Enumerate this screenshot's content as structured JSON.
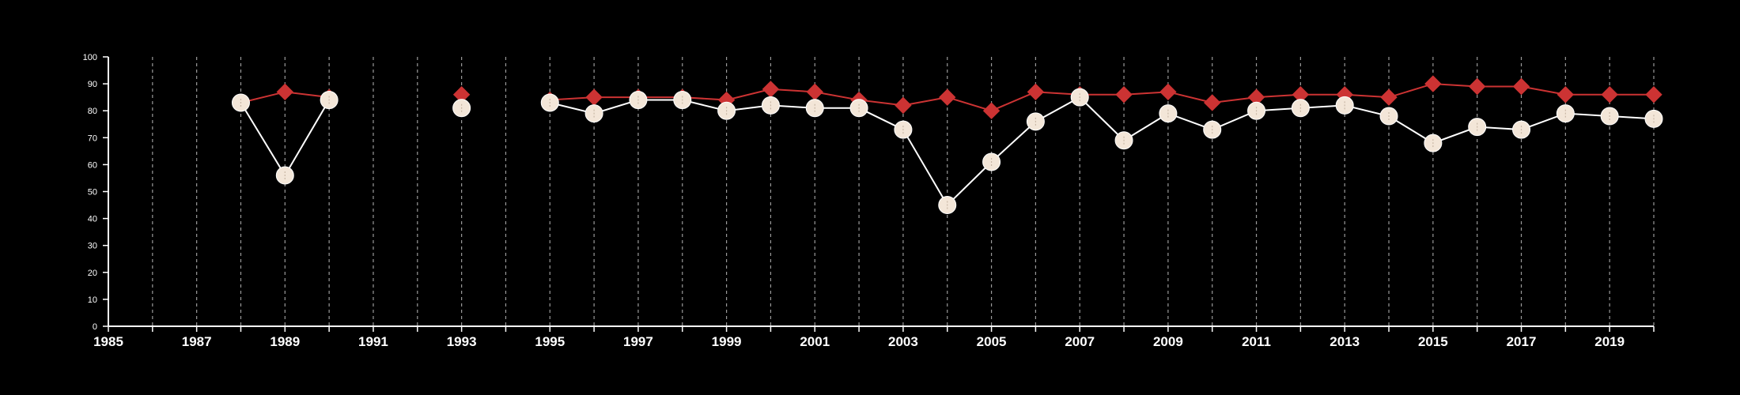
{
  "chart_data": {
    "type": "line",
    "title": "",
    "xlabel": "",
    "ylabel": "",
    "xlim": [
      1985,
      2020
    ],
    "ylim": [
      0,
      100
    ],
    "x_ticks": [
      1985,
      1986,
      1987,
      1988,
      1989,
      1990,
      1991,
      1992,
      1993,
      1994,
      1995,
      1996,
      1997,
      1998,
      1999,
      2000,
      2001,
      2002,
      2003,
      2004,
      2005,
      2006,
      2007,
      2008,
      2009,
      2010,
      2011,
      2012,
      2013,
      2014,
      2015,
      2016,
      2017,
      2018,
      2019,
      2020
    ],
    "x_tick_labels": [
      {
        "x": 1985,
        "label": "1985"
      },
      {
        "x": 1987,
        "label": "1987"
      },
      {
        "x": 1989,
        "label": "1989"
      },
      {
        "x": 1991,
        "label": "1991"
      },
      {
        "x": 1993,
        "label": "1993"
      },
      {
        "x": 1995,
        "label": "1995"
      },
      {
        "x": 1997,
        "label": "1997"
      },
      {
        "x": 1999,
        "label": "1999"
      },
      {
        "x": 2001,
        "label": "2001"
      },
      {
        "x": 2003,
        "label": "2003"
      },
      {
        "x": 2005,
        "label": "2005"
      },
      {
        "x": 2007,
        "label": "2007"
      },
      {
        "x": 2009,
        "label": "2009"
      },
      {
        "x": 2011,
        "label": "2011"
      },
      {
        "x": 2013,
        "label": "2013"
      },
      {
        "x": 2015,
        "label": "2015"
      },
      {
        "x": 2017,
        "label": "2017"
      },
      {
        "x": 2019,
        "label": "2019"
      }
    ],
    "y_ticks": [
      {
        "y": 0,
        "label": "0"
      },
      {
        "y": 10,
        "label": "10"
      },
      {
        "y": 20,
        "label": "20"
      },
      {
        "y": 30,
        "label": "30"
      },
      {
        "y": 40,
        "label": "40"
      },
      {
        "y": 50,
        "label": "50"
      },
      {
        "y": 60,
        "label": "60"
      },
      {
        "y": 70,
        "label": "70"
      },
      {
        "y": 80,
        "label": "80"
      },
      {
        "y": 90,
        "label": "90"
      },
      {
        "y": 100,
        "label": "100"
      }
    ],
    "vertical_grid": "dashed, every year",
    "series": [
      {
        "color": "#cc3333",
        "marker": "diamond",
        "segments": [
          [
            [
              1988,
              83
            ],
            [
              1989,
              87
            ],
            [
              1990,
              85
            ]
          ],
          [
            [
              1993,
              86
            ]
          ],
          [
            [
              1995,
              84
            ],
            [
              1996,
              85
            ],
            [
              1997,
              85
            ],
            [
              1998,
              85
            ],
            [
              1999,
              84
            ],
            [
              2000,
              88
            ],
            [
              2001,
              87
            ],
            [
              2002,
              84
            ],
            [
              2003,
              82
            ],
            [
              2004,
              85
            ],
            [
              2005,
              80
            ],
            [
              2006,
              87
            ],
            [
              2007,
              86
            ],
            [
              2008,
              86
            ],
            [
              2009,
              87
            ],
            [
              2010,
              83
            ],
            [
              2011,
              85
            ],
            [
              2012,
              86
            ],
            [
              2013,
              86
            ],
            [
              2014,
              85
            ],
            [
              2015,
              90
            ],
            [
              2016,
              89
            ],
            [
              2017,
              89
            ],
            [
              2018,
              86
            ],
            [
              2019,
              86
            ],
            [
              2020,
              86
            ]
          ]
        ]
      },
      {
        "color": "#ffffff",
        "marker_fill": "#f3e6d8",
        "marker": "circle",
        "segments": [
          [
            [
              1988,
              83
            ],
            [
              1989,
              56
            ],
            [
              1990,
              84
            ]
          ],
          [
            [
              1993,
              81
            ]
          ],
          [
            [
              1995,
              83
            ],
            [
              1996,
              79
            ],
            [
              1997,
              84
            ],
            [
              1998,
              84
            ],
            [
              1999,
              80
            ],
            [
              2000,
              82
            ],
            [
              2001,
              81
            ],
            [
              2002,
              81
            ],
            [
              2003,
              73
            ],
            [
              2004,
              45
            ],
            [
              2005,
              61
            ],
            [
              2006,
              76
            ],
            [
              2007,
              85
            ],
            [
              2008,
              69
            ],
            [
              2009,
              79
            ],
            [
              2010,
              73
            ],
            [
              2011,
              80
            ],
            [
              2012,
              81
            ],
            [
              2013,
              82
            ],
            [
              2014,
              78
            ],
            [
              2015,
              68
            ],
            [
              2016,
              74
            ],
            [
              2017,
              73
            ],
            [
              2018,
              79
            ],
            [
              2019,
              78
            ],
            [
              2020,
              77
            ]
          ]
        ]
      }
    ]
  }
}
